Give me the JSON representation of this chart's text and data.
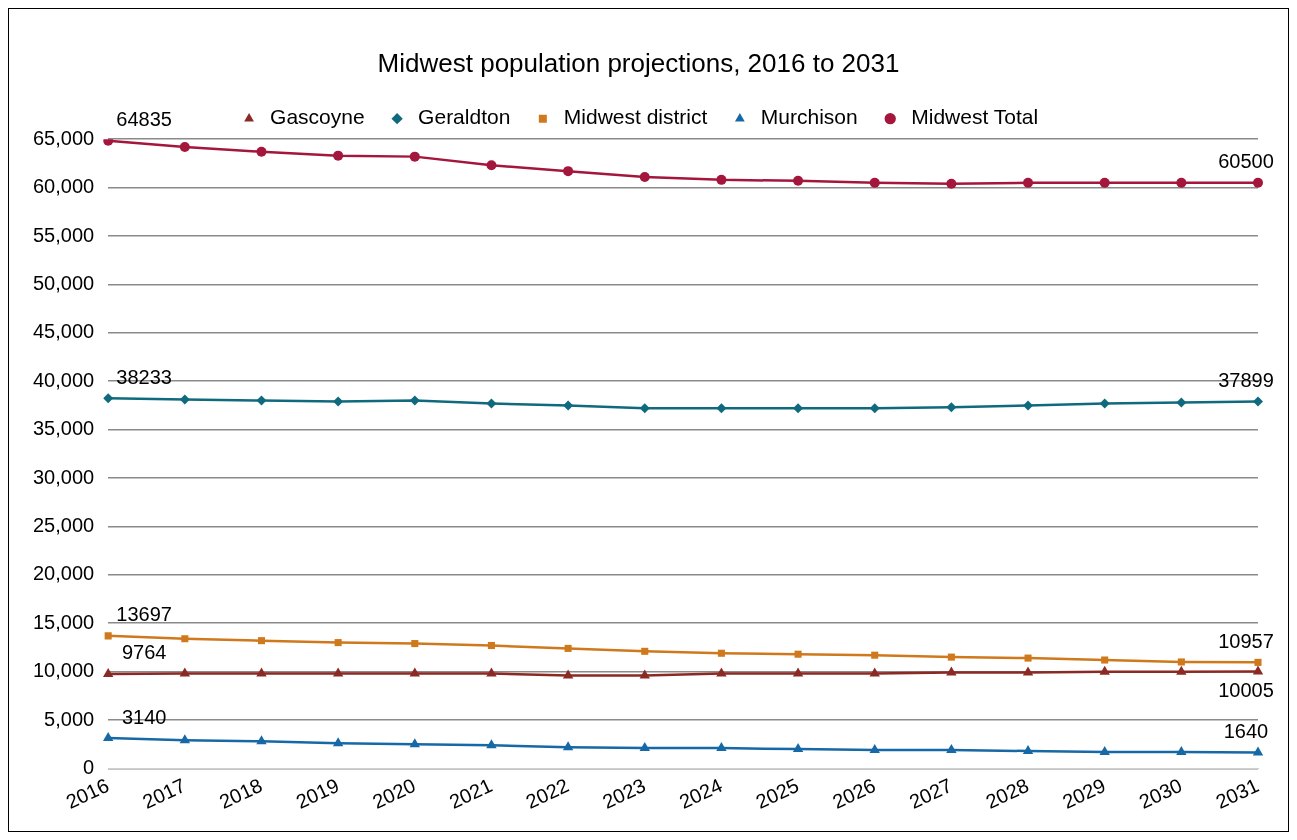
{
  "chart_data": {
    "type": "line",
    "title": "Midwest population projections, 2016 to 2031",
    "categories": [
      "2016",
      "2017",
      "2018",
      "2019",
      "2020",
      "2021",
      "2022",
      "2023",
      "2024",
      "2025",
      "2026",
      "2027",
      "2028",
      "2029",
      "2030",
      "2031"
    ],
    "series": [
      {
        "name": "Gascoyne",
        "color": "#8b2a24",
        "marker": "triangle",
        "values": [
          9764,
          9800,
          9800,
          9800,
          9800,
          9800,
          9600,
          9600,
          9800,
          9800,
          9800,
          9900,
          9900,
          10000,
          10000,
          10005
        ],
        "value_labels": [
          "9764",
          null,
          null,
          null,
          null,
          null,
          null,
          null,
          null,
          null,
          null,
          null,
          null,
          null,
          null,
          "10005"
        ]
      },
      {
        "name": "Geraldton",
        "color": "#106a7e",
        "marker": "diamond",
        "values": [
          38233,
          38100,
          38000,
          37900,
          38000,
          37700,
          37500,
          37200,
          37200,
          37200,
          37200,
          37300,
          37500,
          37700,
          37800,
          37899
        ],
        "value_labels": [
          "38233",
          null,
          null,
          null,
          null,
          null,
          null,
          null,
          null,
          null,
          null,
          null,
          null,
          null,
          null,
          "37899"
        ]
      },
      {
        "name": "Midwest district",
        "color": "#d0781c",
        "marker": "square",
        "values": [
          13697,
          13400,
          13200,
          13000,
          12900,
          12700,
          12400,
          12100,
          11900,
          11800,
          11700,
          11500,
          11400,
          11200,
          11000,
          10957
        ],
        "value_labels": [
          "13697",
          null,
          null,
          null,
          null,
          null,
          null,
          null,
          null,
          null,
          null,
          null,
          null,
          null,
          null,
          "10957"
        ]
      },
      {
        "name": "Murchison",
        "color": "#1768a6",
        "marker": "triangle",
        "values": [
          3140,
          2900,
          2800,
          2600,
          2500,
          2400,
          2200,
          2100,
          2100,
          2000,
          1900,
          1900,
          1800,
          1700,
          1700,
          1640
        ],
        "value_labels": [
          "3140",
          null,
          null,
          null,
          null,
          null,
          null,
          null,
          null,
          null,
          null,
          null,
          null,
          null,
          null,
          "1640"
        ]
      },
      {
        "name": "Midwest Total",
        "color": "#a4163c",
        "marker": "circle",
        "values": [
          64835,
          64200,
          63700,
          63300,
          63200,
          62300,
          61700,
          61100,
          60800,
          60700,
          60500,
          60400,
          60500,
          60500,
          60500,
          60500
        ],
        "value_labels": [
          "64835",
          null,
          null,
          null,
          null,
          null,
          null,
          null,
          null,
          null,
          null,
          null,
          null,
          null,
          null,
          "60500"
        ]
      }
    ],
    "ylim": [
      0,
      65000
    ],
    "yticks": [
      {
        "value": 0,
        "label": "0"
      },
      {
        "value": 5000,
        "label": "5,000"
      },
      {
        "value": 10000,
        "label": "10,000"
      },
      {
        "value": 15000,
        "label": "15,000"
      },
      {
        "value": 20000,
        "label": "20,000"
      },
      {
        "value": 25000,
        "label": "25,000"
      },
      {
        "value": 30000,
        "label": "30,000"
      },
      {
        "value": 35000,
        "label": "35,000"
      },
      {
        "value": 40000,
        "label": "40,000"
      },
      {
        "value": 45000,
        "label": "45,000"
      },
      {
        "value": 50000,
        "label": "50,000"
      },
      {
        "value": 55000,
        "label": "55,000"
      },
      {
        "value": 60000,
        "label": "60,000"
      },
      {
        "value": 65000,
        "label": "65,000"
      }
    ],
    "grid": "y",
    "legend": "top"
  }
}
